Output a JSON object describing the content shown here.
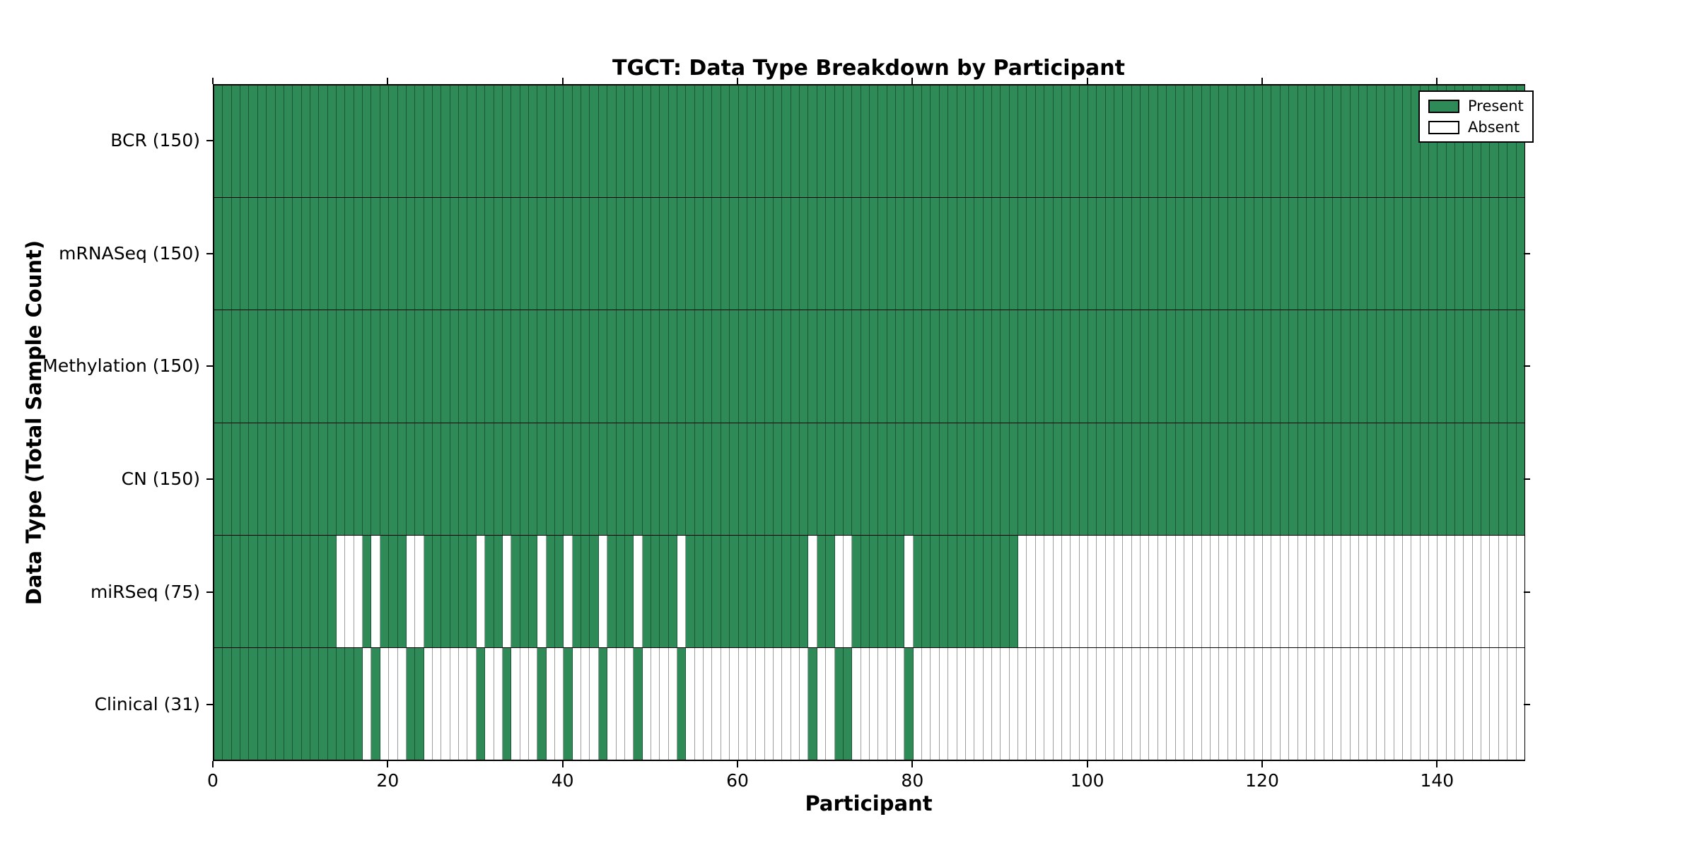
{
  "title": "TGCT: Data Type Breakdown by Participant",
  "colors": {
    "present": "#2e8b57",
    "absent": "#ffffff",
    "grid_line": "rgba(0,0,0,0.38)",
    "axis": "#000000"
  },
  "chart_data": {
    "type": "heatmap",
    "title": "TGCT: Data Type Breakdown by Participant",
    "xlabel": "Participant",
    "ylabel": "Data Type (Total Sample Count)",
    "x_range": [
      0,
      150
    ],
    "n_participants": 150,
    "x_ticks": [
      0,
      20,
      40,
      60,
      80,
      100,
      120,
      140
    ],
    "grid": "per-participant vertical separators, black row separators",
    "legend_position": "upper right",
    "legend": [
      {
        "label": "Present",
        "color": "#2e8b57"
      },
      {
        "label": "Absent",
        "color": "#ffffff"
      }
    ],
    "rows": [
      {
        "label": "BCR (150)",
        "data_type": "BCR",
        "sample_count": 150,
        "present_ranges": [
          [
            0,
            149
          ]
        ]
      },
      {
        "label": "mRNASeq (150)",
        "data_type": "mRNASeq",
        "sample_count": 150,
        "present_ranges": [
          [
            0,
            149
          ]
        ]
      },
      {
        "label": "Methylation (150)",
        "data_type": "Methylation",
        "sample_count": 150,
        "present_ranges": [
          [
            0,
            149
          ]
        ]
      },
      {
        "label": "CN (150)",
        "data_type": "CN",
        "sample_count": 150,
        "present_ranges": [
          [
            0,
            149
          ]
        ]
      },
      {
        "label": "miRSeq (75)",
        "data_type": "miRSeq",
        "sample_count": 75,
        "present_ranges": [
          [
            0,
            13
          ],
          [
            17,
            17
          ],
          [
            19,
            21
          ],
          [
            24,
            29
          ],
          [
            31,
            32
          ],
          [
            34,
            36
          ],
          [
            38,
            39
          ],
          [
            41,
            43
          ],
          [
            45,
            47
          ],
          [
            49,
            52
          ],
          [
            54,
            67
          ],
          [
            69,
            70
          ],
          [
            73,
            78
          ],
          [
            80,
            91
          ]
        ]
      },
      {
        "label": "Clinical (31)",
        "data_type": "Clinical",
        "sample_count": 31,
        "present_ranges": [
          [
            0,
            16
          ],
          [
            18,
            18
          ],
          [
            22,
            23
          ],
          [
            30,
            30
          ],
          [
            33,
            33
          ],
          [
            37,
            37
          ],
          [
            40,
            40
          ],
          [
            44,
            44
          ],
          [
            48,
            48
          ],
          [
            53,
            53
          ],
          [
            68,
            68
          ],
          [
            71,
            72
          ],
          [
            79,
            79
          ]
        ]
      }
    ]
  }
}
